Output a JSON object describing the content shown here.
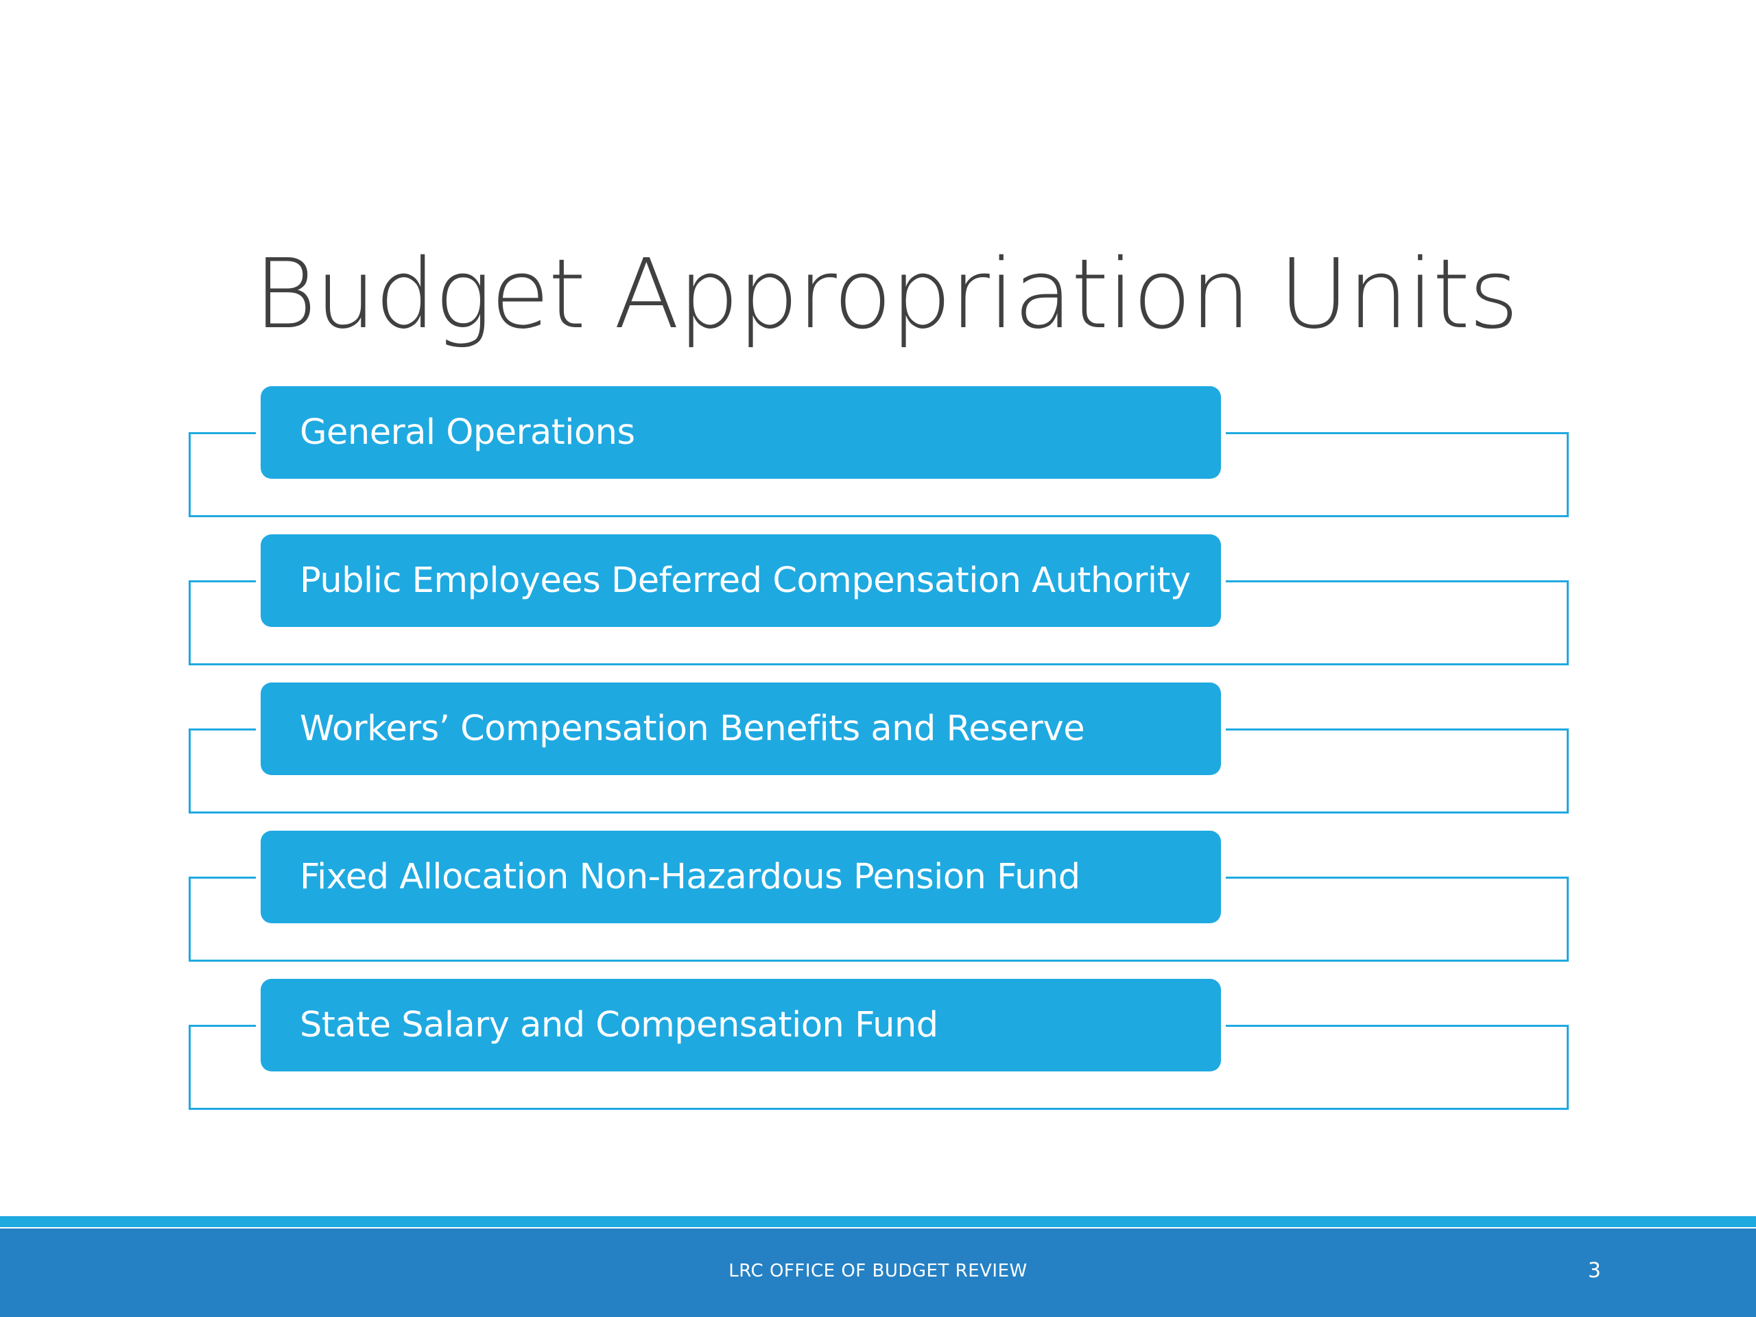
{
  "slide": {
    "title": "Budget Appropriation Units",
    "units": [
      {
        "label": "General Operations"
      },
      {
        "label": "Public Employees Deferred Compensation Authority"
      },
      {
        "label": "Workers’ Compensation Benefits and Reserve"
      },
      {
        "label": "Fixed Allocation Non-Hazardous Pension Fund"
      },
      {
        "label": "State Salary and Compensation Fund"
      }
    ],
    "footer_text": "LRC OFFICE OF BUDGET REVIEW",
    "page_number": "3"
  },
  "colors": {
    "accent": "#1fa9e1",
    "footer_band": "#2581c4",
    "title_text": "#404040",
    "background": "#ffffff"
  }
}
